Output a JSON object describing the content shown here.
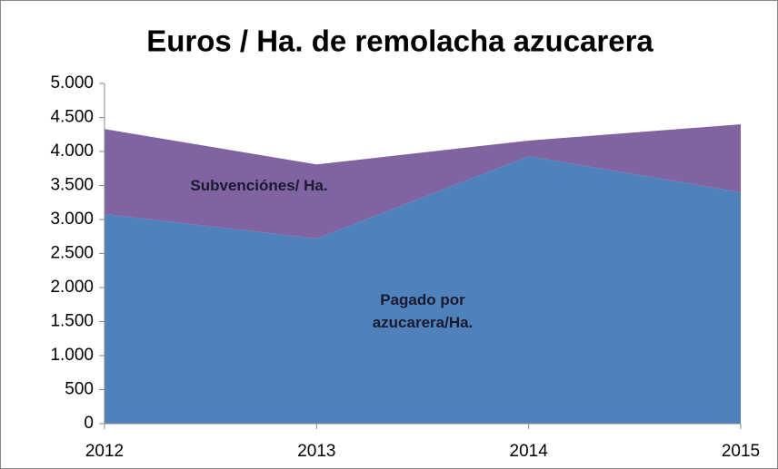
{
  "chart_data": {
    "type": "stacked_area",
    "title": "Euros / Ha. de remolacha azucarera",
    "categories": [
      "2012",
      "2013",
      "2014",
      "2015"
    ],
    "series": [
      {
        "name": "Pagado por azucarera/Ha.",
        "color": "#4f81bd",
        "values": [
          3080,
          2720,
          3930,
          3400
        ]
      },
      {
        "name": "Subvenciónes/ Ha.",
        "color": "#8064a2",
        "values": [
          1250,
          1090,
          230,
          1000
        ]
      }
    ],
    "ylim": [
      0,
      5000
    ],
    "yticks": [
      0,
      500,
      {
        "value": 1000,
        "label": "1.000"
      },
      {
        "value": 1500,
        "label": "1.500"
      },
      {
        "value": 2000,
        "label": "2.000"
      },
      {
        "value": 2500,
        "label": "2.500"
      },
      {
        "value": 3000,
        "label": "3.000"
      },
      {
        "value": 3500,
        "label": "3.500"
      },
      {
        "value": 4000,
        "label": "4.000"
      },
      {
        "value": 4500,
        "label": "4.500"
      },
      {
        "value": 5000,
        "label": "5.000"
      }
    ],
    "grid": false
  }
}
